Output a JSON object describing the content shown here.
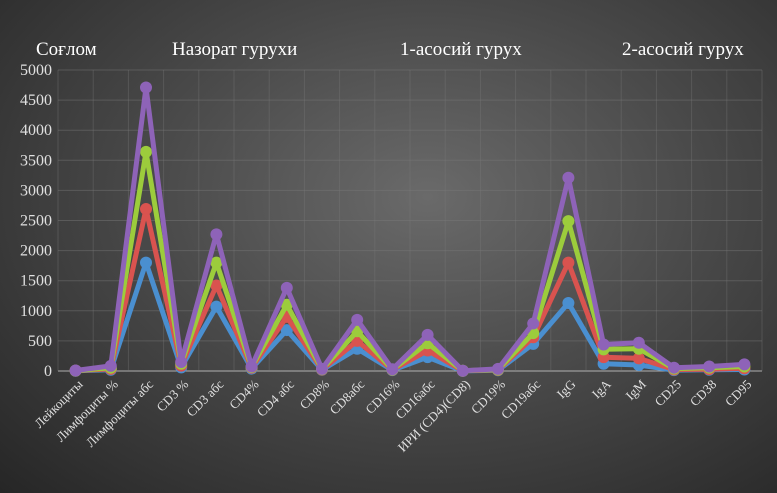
{
  "chart_data": {
    "type": "line",
    "legend_position": "top",
    "grid": true,
    "ylim": [
      0,
      5000
    ],
    "yticks": [
      "0",
      "500",
      "1000",
      "1500",
      "2000",
      "2500",
      "3000",
      "3500",
      "4000",
      "4500",
      "5000"
    ],
    "categories": [
      "Лейкоциты",
      "Лимфоциты %",
      "Лимфоциты абс",
      "CD3 %",
      "CD3 абс",
      "CD4%",
      "CD4 абс",
      "CD8%",
      "CD8абс",
      "CD16%",
      "CD16абс",
      "ИРИ (CD4)(CD8)",
      "CD19%",
      "CD19абс",
      "IgG",
      "IgA",
      "IgM",
      "CD25",
      "CD38",
      "CD95"
    ],
    "series": [
      {
        "name": "Соғлом",
        "color": "#4a8fd0",
        "values": [
          5,
          20,
          1800,
          60,
          1070,
          40,
          680,
          20,
          370,
          15,
          230,
          2,
          12,
          450,
          1130,
          120,
          100,
          15,
          20,
          25
        ]
      },
      {
        "name": "Назорат гурухи",
        "color": "#d9534f",
        "values": [
          6,
          35,
          2690,
          90,
          1420,
          55,
          900,
          25,
          500,
          20,
          340,
          3,
          18,
          560,
          1800,
          230,
          210,
          25,
          30,
          45
        ]
      },
      {
        "name": "1-асосий гурух",
        "color": "#9ccc3c",
        "values": [
          7,
          55,
          3640,
          120,
          1800,
          65,
          1100,
          30,
          660,
          25,
          460,
          4,
          25,
          630,
          2490,
          360,
          370,
          40,
          55,
          75
        ]
      },
      {
        "name": "2-асосий гурух",
        "color": "#8e63b8",
        "values": [
          8,
          85,
          4710,
          150,
          2270,
          75,
          1380,
          35,
          850,
          30,
          600,
          5,
          35,
          790,
          3210,
          440,
          470,
          55,
          75,
          110
        ]
      }
    ]
  }
}
